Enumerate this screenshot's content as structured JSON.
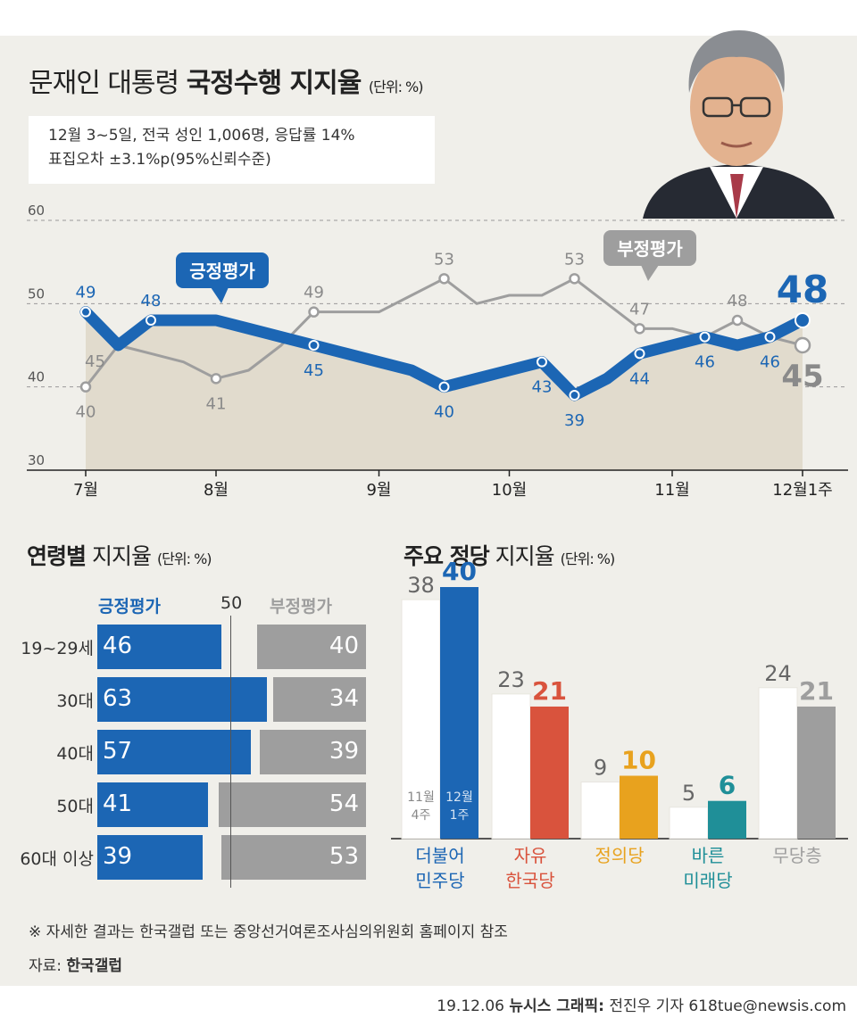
{
  "title": {
    "prefix": "문재인 대통령",
    "bold": "국정수행 지지율",
    "unit": "(단위: %)"
  },
  "survey": {
    "line1": "12월 3~5일, 전국 성인 1,006명, 응답률 14%",
    "line2": "표집오차 ±3.1%p(95%신뢰수준)"
  },
  "chart_data": [
    {
      "type": "line",
      "y_ticks": [
        30,
        40,
        50,
        60
      ],
      "ylim": [
        30,
        60
      ],
      "x_labels": [
        {
          "label": "7월",
          "idx": 0
        },
        {
          "label": "8월",
          "idx": 4
        },
        {
          "label": "9월",
          "idx": 9
        },
        {
          "label": "10월",
          "idx": 13
        },
        {
          "label": "11월",
          "idx": 18
        },
        {
          "label": "12월1주",
          "idx": 22
        }
      ],
      "series": [
        {
          "name": "긍정평가",
          "color": "#1c66b4",
          "values": [
            49,
            45,
            48,
            48,
            48,
            47,
            46,
            45,
            44,
            43,
            42,
            40,
            41,
            42,
            43,
            39,
            41,
            44,
            45,
            46,
            45,
            46,
            48
          ],
          "labels": [
            {
              "idx": 0,
              "text": "49",
              "pos": "above"
            },
            {
              "idx": 2,
              "text": "48",
              "pos": "above"
            },
            {
              "idx": 7,
              "text": "45",
              "pos": "below"
            },
            {
              "idx": 11,
              "text": "40",
              "pos": "below"
            },
            {
              "idx": 14,
              "text": "43",
              "pos": "below"
            },
            {
              "idx": 15,
              "text": "39",
              "pos": "below"
            },
            {
              "idx": 17,
              "text": "44",
              "pos": "below"
            },
            {
              "idx": 19,
              "text": "46",
              "pos": "below"
            },
            {
              "idx": 21,
              "text": "46",
              "pos": "below"
            },
            {
              "idx": 22,
              "text": "48",
              "pos": "big-above"
            }
          ],
          "markers": [
            0,
            2,
            7,
            11,
            14,
            15,
            17,
            19,
            21,
            22
          ]
        },
        {
          "name": "부정평가",
          "color": "#9e9e9e",
          "values": [
            40,
            45,
            44,
            43,
            41,
            42,
            45,
            49,
            49,
            49,
            51,
            53,
            50,
            51,
            51,
            53,
            50,
            47,
            47,
            46,
            48,
            46,
            45
          ],
          "labels": [
            {
              "idx": 0,
              "text": "40",
              "pos": "below"
            },
            {
              "idx": 1,
              "text": "45",
              "pos": "left"
            },
            {
              "idx": 4,
              "text": "41",
              "pos": "below"
            },
            {
              "idx": 7,
              "text": "49",
              "pos": "above"
            },
            {
              "idx": 11,
              "text": "53",
              "pos": "above"
            },
            {
              "idx": 15,
              "text": "53",
              "pos": "above"
            },
            {
              "idx": 17,
              "text": "47",
              "pos": "above"
            },
            {
              "idx": 20,
              "text": "48",
              "pos": "above"
            },
            {
              "idx": 22,
              "text": "45",
              "pos": "big-below"
            }
          ],
          "markers": [
            0,
            4,
            7,
            11,
            15,
            17,
            20,
            22
          ]
        }
      ],
      "callouts": {
        "positive": "긍정평가",
        "negative": "부정평가"
      }
    },
    {
      "type": "bar",
      "title_bold": "연령별",
      "title_rest": "지지율",
      "unit": "(단위: %)",
      "series_names": {
        "positive": "긍정평가",
        "negative": "부정평가"
      },
      "reference_line": "50",
      "categories": [
        "19~29세",
        "30대",
        "40대",
        "50대",
        "60대 이상"
      ],
      "positive": [
        46,
        63,
        57,
        41,
        39
      ],
      "negative": [
        40,
        34,
        39,
        54,
        53
      ]
    },
    {
      "type": "bar",
      "title_bold": "주요 정당",
      "title_rest": "지지율",
      "unit": "(단위: %)",
      "series": [
        {
          "name": "11월 4주",
          "line1": "11월",
          "line2": "4주"
        },
        {
          "name": "12월 1주",
          "line1": "12월",
          "line2": "1주"
        }
      ],
      "ylim": [
        0,
        40
      ],
      "parties": [
        {
          "line1": "더불어",
          "line2": "민주당",
          "prev": 38,
          "curr": 40,
          "color": "#1c66b4",
          "label_color": "#1c66b4",
          "prev_label": "38",
          "curr_label": "40"
        },
        {
          "line1": "자유",
          "line2": "한국당",
          "prev": 23,
          "curr": 21,
          "color": "#d9533d",
          "label_color": "#d9533d",
          "prev_label": "23",
          "curr_label": "21"
        },
        {
          "line1": "정의당",
          "line2": "",
          "prev": 9,
          "curr": 10,
          "color": "#e8a21e",
          "label_color": "#e8a21e",
          "prev_label": "9",
          "curr_label": "10"
        },
        {
          "line1": "바른",
          "line2": "미래당",
          "prev": 5,
          "curr": 6,
          "color": "#1f8f98",
          "label_color": "#1f8f98",
          "prev_label": "5",
          "curr_label": "6"
        },
        {
          "line1": "무당층",
          "line2": "",
          "prev": 24,
          "curr": 21,
          "color": "#9e9e9e",
          "label_color": "#9e9e9e",
          "prev_label": "24",
          "curr_label": "21"
        }
      ]
    }
  ],
  "footnote": "※ 자세한 결과는 한국갤럽 또는 중앙선거여론조사심의위원회 홈페이지 참조",
  "source": {
    "label": "자료:",
    "value": "한국갤럽"
  },
  "credit": {
    "date": "19.12.06",
    "org": "뉴시스 그래픽:",
    "author": "전진우 기자 618tue@newsis.com"
  }
}
